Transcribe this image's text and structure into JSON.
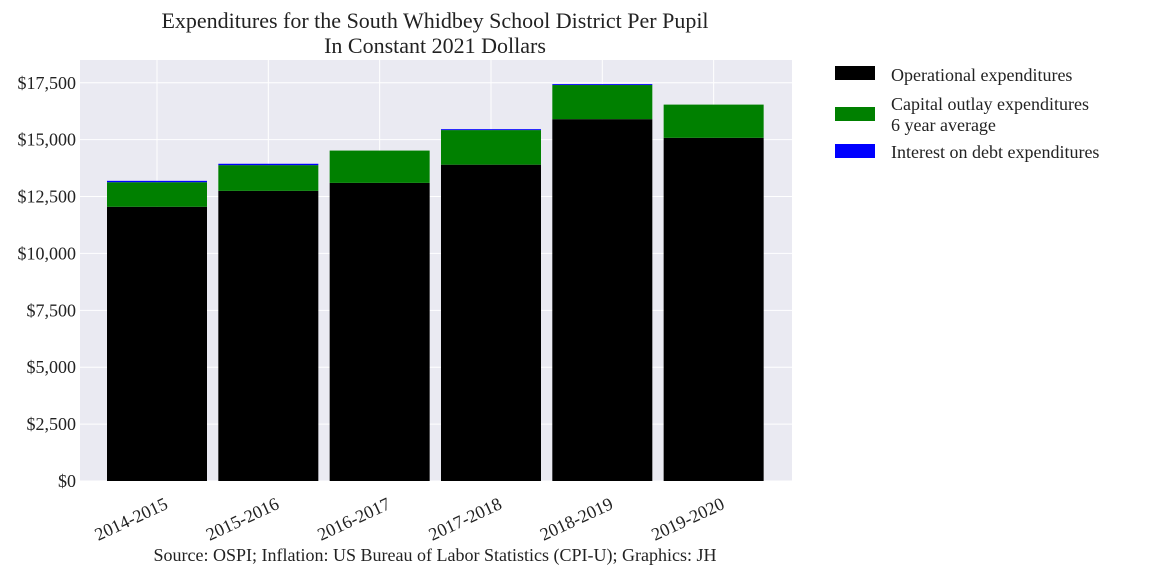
{
  "chart_data": {
    "type": "bar",
    "stacked": true,
    "title": "Expenditures for the South Whidbey School District Per Pupil",
    "subtitle": "In Constant 2021 Dollars",
    "xlabel": "",
    "ylabel": "",
    "categories": [
      "2014-2015",
      "2015-2016",
      "2016-2017",
      "2017-2018",
      "2018-2019",
      "2019-2020"
    ],
    "ylim": [
      0,
      18500
    ],
    "yticks": [
      0,
      2500,
      5000,
      7500,
      10000,
      12500,
      15000,
      17500
    ],
    "ytick_labels": [
      "$0",
      "$2,500",
      "$5,000",
      "$7,500",
      "$10,000",
      "$12,500",
      "$15,000",
      "$17,500"
    ],
    "series": [
      {
        "name": "Operational expenditures",
        "color": "#000000",
        "values": [
          12050,
          12750,
          13100,
          13900,
          15900,
          15080
        ]
      },
      {
        "name": "Capital outlay expenditures\n6 year average",
        "color": "#008000",
        "values": [
          1080,
          1130,
          1420,
          1520,
          1500,
          1460
        ]
      },
      {
        "name": "Interest on debt expenditures",
        "color": "#0000ff",
        "values": [
          60,
          60,
          0,
          40,
          40,
          0
        ]
      }
    ],
    "grid": true,
    "legend_position": "outside-right-top",
    "background_color": "#eaeaf2",
    "source": "Source: OSPI; Inflation: US Bureau of Labor Statistics (CPI-U); Graphics: JH"
  }
}
